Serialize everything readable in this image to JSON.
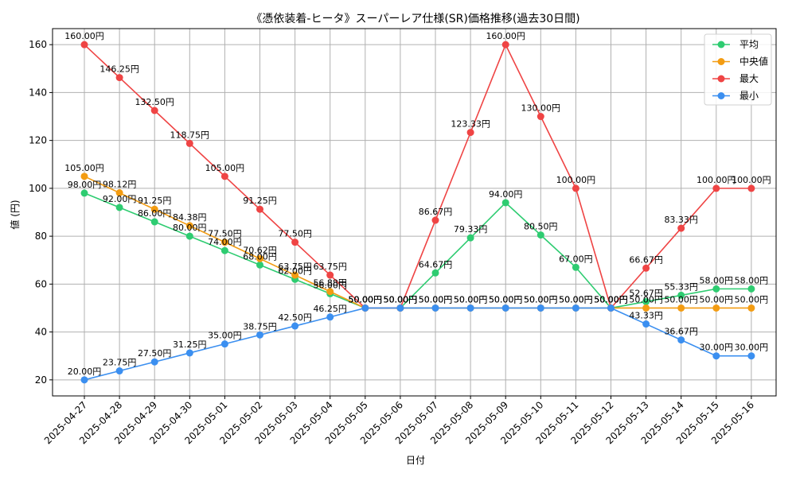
{
  "chart_data": {
    "type": "line",
    "title": "《憑依装着-ヒータ》スーパーレア仕様(SR)価格推移(過去30日間)",
    "xlabel": "日付",
    "ylabel": "値 (円)",
    "ylim": [
      13.3,
      166.7
    ],
    "yticks": [
      20,
      40,
      60,
      80,
      100,
      120,
      140,
      160
    ],
    "grid": true,
    "legend_position": "top-right",
    "categories": [
      "2025-04-27",
      "2025-04-28",
      "2025-04-29",
      "2025-04-30",
      "2025-05-01",
      "2025-05-02",
      "2025-05-03",
      "2025-05-04",
      "2025-05-05",
      "2025-05-06",
      "2025-05-07",
      "2025-05-08",
      "2025-05-09",
      "2025-05-10",
      "2025-05-11",
      "2025-05-12",
      "2025-05-13",
      "2025-05-14",
      "2025-05-15",
      "2025-05-16"
    ],
    "value_suffix": "円",
    "series": [
      {
        "name": "平均",
        "color": "#2ecc71",
        "values": [
          98,
          92,
          86,
          80,
          74,
          68,
          62,
          56,
          50,
          50,
          64.67,
          79.33,
          94,
          80.5,
          67,
          50,
          52.67,
          55.33,
          58,
          58
        ]
      },
      {
        "name": "中央値",
        "color": "#f39c12",
        "values": [
          105,
          98.12,
          91.25,
          84.38,
          77.5,
          70.62,
          63.75,
          56.88,
          50,
          50,
          50,
          50,
          50,
          50,
          50,
          50,
          50,
          50,
          50,
          50
        ]
      },
      {
        "name": "最大",
        "color": "#ef4444",
        "values": [
          160,
          146.25,
          132.5,
          118.75,
          105,
          91.25,
          77.5,
          63.75,
          50,
          50,
          86.67,
          123.33,
          160,
          130,
          100,
          50,
          66.67,
          83.33,
          100,
          100
        ]
      },
      {
        "name": "最小",
        "color": "#3b8ff0",
        "values": [
          20,
          23.75,
          27.5,
          31.25,
          35,
          38.75,
          42.5,
          46.25,
          50,
          50,
          50,
          50,
          50,
          50,
          50,
          50,
          43.33,
          36.67,
          30,
          30
        ]
      }
    ]
  }
}
